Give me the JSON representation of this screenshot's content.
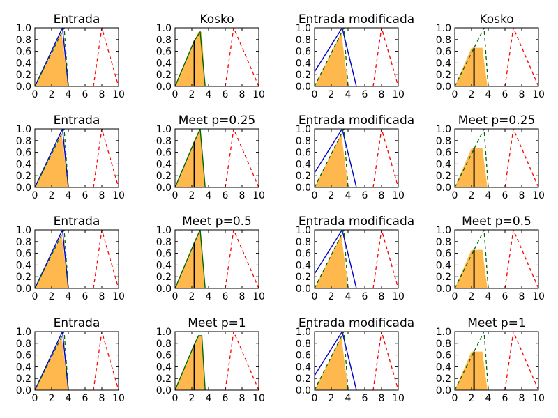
{
  "colors": {
    "fill": "#ffb84d",
    "blue": "#0000cc",
    "green": "#006600",
    "red": "#ff0000",
    "black": "#000000"
  },
  "x_ticks": [
    "0",
    "2",
    "4",
    "6",
    "8",
    "10"
  ],
  "y_ticks": [
    "0.0",
    "0.2",
    "0.4",
    "0.6",
    "0.8",
    "1.0"
  ],
  "chart_data": [
    {
      "type": "line",
      "title": "Entrada",
      "xlim": [
        0,
        10
      ],
      "ylim": [
        0,
        1
      ],
      "series": [
        {
          "color": "blue",
          "style": "solid",
          "x": [
            0,
            3.3,
            4
          ],
          "y": [
            0,
            1,
            0
          ]
        },
        {
          "color": "green",
          "style": "dashed",
          "x": [
            0,
            3.5,
            4
          ],
          "y": [
            0,
            1,
            0
          ]
        },
        {
          "color": "red",
          "style": "dashed",
          "x": [
            7,
            8,
            10
          ],
          "y": [
            0,
            1,
            0
          ]
        }
      ],
      "fill": {
        "x": [
          0,
          3.2,
          4
        ],
        "y": [
          0,
          0.92,
          0
        ]
      }
    },
    {
      "type": "line",
      "title": "Kosko",
      "xlim": [
        0,
        10
      ],
      "ylim": [
        0,
        1
      ],
      "series": [
        {
          "color": "green",
          "style": "solid",
          "x": [
            0,
            2.3,
            3,
            3.6
          ],
          "y": [
            0,
            0.78,
            0.93,
            0
          ]
        },
        {
          "color": "red",
          "style": "dashed",
          "x": [
            6,
            7,
            10
          ],
          "y": [
            0,
            1,
            0
          ]
        }
      ],
      "fill": {
        "x": [
          0,
          2.3,
          2.8,
          3.2,
          3.6
        ],
        "y": [
          0,
          0.78,
          0.93,
          0.93,
          0
        ]
      },
      "marker": {
        "x": 2.3,
        "y": 0.78
      }
    },
    {
      "type": "line",
      "title": "Entrada modificada",
      "xlim": [
        0,
        10
      ],
      "ylim": [
        0,
        1
      ],
      "series": [
        {
          "color": "blue",
          "style": "solid",
          "x": [
            0,
            3.3,
            5
          ],
          "y": [
            0.25,
            1,
            0
          ]
        },
        {
          "color": "green",
          "style": "dashed",
          "x": [
            0,
            3.5,
            4
          ],
          "y": [
            0,
            1,
            0
          ]
        },
        {
          "color": "red",
          "style": "dashed",
          "x": [
            7,
            8,
            10
          ],
          "y": [
            0,
            1,
            0
          ]
        }
      ],
      "fill": {
        "x": [
          0,
          3.2,
          4
        ],
        "y": [
          0,
          0.92,
          0
        ]
      }
    },
    {
      "type": "line",
      "title": "Kosko",
      "xlim": [
        0,
        10
      ],
      "ylim": [
        0,
        1
      ],
      "series": [
        {
          "color": "green",
          "style": "dashed",
          "x": [
            0,
            3.5,
            4
          ],
          "y": [
            0,
            1,
            0
          ]
        },
        {
          "color": "red",
          "style": "dashed",
          "x": [
            6,
            7,
            10
          ],
          "y": [
            0,
            1,
            0
          ]
        }
      ],
      "fill": {
        "x": [
          0,
          2.0,
          3.3,
          3.9
        ],
        "y": [
          0,
          0.66,
          0.66,
          0
        ]
      },
      "marker": {
        "x": 2.3,
        "y": 0.66
      }
    },
    {
      "type": "line",
      "title": "Entrada",
      "xlim": [
        0,
        10
      ],
      "ylim": [
        0,
        1
      ],
      "series": [
        {
          "color": "blue",
          "style": "solid",
          "x": [
            0,
            3.3,
            4
          ],
          "y": [
            0,
            1,
            0
          ]
        },
        {
          "color": "green",
          "style": "dashed",
          "x": [
            0,
            3.5,
            4
          ],
          "y": [
            0,
            1,
            0
          ]
        },
        {
          "color": "red",
          "style": "dashed",
          "x": [
            7,
            8,
            10
          ],
          "y": [
            0,
            1,
            0
          ]
        }
      ],
      "fill": {
        "x": [
          0,
          3.2,
          4
        ],
        "y": [
          0,
          0.92,
          0
        ]
      }
    },
    {
      "type": "line",
      "title": "Meet p=0.25",
      "xlim": [
        0,
        10
      ],
      "ylim": [
        0,
        1
      ],
      "series": [
        {
          "color": "green",
          "style": "solid",
          "x": [
            0,
            2.3,
            3,
            3.6
          ],
          "y": [
            0,
            0.78,
            1,
            0
          ]
        },
        {
          "color": "red",
          "style": "dashed",
          "x": [
            6,
            7,
            10
          ],
          "y": [
            0,
            1,
            0
          ]
        }
      ],
      "fill": {
        "x": [
          0,
          2.3,
          3,
          3.6
        ],
        "y": [
          0,
          0.78,
          1,
          0
        ]
      },
      "marker": {
        "x": 2.3,
        "y": 0.78
      }
    },
    {
      "type": "line",
      "title": "Entrada modificada",
      "xlim": [
        0,
        10
      ],
      "ylim": [
        0,
        1
      ],
      "series": [
        {
          "color": "blue",
          "style": "solid",
          "x": [
            0,
            3.3,
            5
          ],
          "y": [
            0.25,
            1,
            0
          ]
        },
        {
          "color": "green",
          "style": "dashed",
          "x": [
            0,
            3.5,
            4
          ],
          "y": [
            0,
            1,
            0
          ]
        },
        {
          "color": "red",
          "style": "dashed",
          "x": [
            7,
            8,
            10
          ],
          "y": [
            0,
            1,
            0
          ]
        }
      ],
      "fill": {
        "x": [
          0,
          3.2,
          4
        ],
        "y": [
          0,
          0.92,
          0
        ]
      }
    },
    {
      "type": "line",
      "title": "Meet p=0.25",
      "xlim": [
        0,
        10
      ],
      "ylim": [
        0,
        1
      ],
      "series": [
        {
          "color": "green",
          "style": "dashed",
          "x": [
            0,
            3.5,
            4
          ],
          "y": [
            0,
            1,
            0
          ]
        },
        {
          "color": "red",
          "style": "dashed",
          "x": [
            6,
            7,
            10
          ],
          "y": [
            0,
            1,
            0
          ]
        }
      ],
      "fill": {
        "x": [
          0,
          2.0,
          3.3,
          3.9
        ],
        "y": [
          0,
          0.67,
          0.67,
          0
        ]
      },
      "marker": {
        "x": 2.3,
        "y": 0.67
      }
    },
    {
      "type": "line",
      "title": "Entrada",
      "xlim": [
        0,
        10
      ],
      "ylim": [
        0,
        1
      ],
      "series": [
        {
          "color": "blue",
          "style": "solid",
          "x": [
            0,
            3.3,
            4
          ],
          "y": [
            0,
            1,
            0
          ]
        },
        {
          "color": "green",
          "style": "dashed",
          "x": [
            0,
            3.5,
            4
          ],
          "y": [
            0,
            1,
            0
          ]
        },
        {
          "color": "red",
          "style": "dashed",
          "x": [
            7,
            8,
            10
          ],
          "y": [
            0,
            1,
            0
          ]
        }
      ],
      "fill": {
        "x": [
          0,
          3.2,
          4
        ],
        "y": [
          0,
          0.92,
          0
        ]
      }
    },
    {
      "type": "line",
      "title": "Meet p=0.5",
      "xlim": [
        0,
        10
      ],
      "ylim": [
        0,
        1
      ],
      "series": [
        {
          "color": "green",
          "style": "solid",
          "x": [
            0,
            2.3,
            3,
            3.6
          ],
          "y": [
            0,
            0.78,
            1,
            0
          ]
        },
        {
          "color": "red",
          "style": "dashed",
          "x": [
            6,
            7,
            10
          ],
          "y": [
            0,
            1,
            0
          ]
        }
      ],
      "fill": {
        "x": [
          0,
          2.3,
          3,
          3.6
        ],
        "y": [
          0,
          0.78,
          1,
          0
        ]
      },
      "marker": {
        "x": 2.3,
        "y": 0.78
      }
    },
    {
      "type": "line",
      "title": "Entrada modificada",
      "xlim": [
        0,
        10
      ],
      "ylim": [
        0,
        1
      ],
      "series": [
        {
          "color": "blue",
          "style": "solid",
          "x": [
            0,
            3.3,
            5
          ],
          "y": [
            0.25,
            1,
            0
          ]
        },
        {
          "color": "green",
          "style": "dashed",
          "x": [
            0,
            3.5,
            4
          ],
          "y": [
            0,
            1,
            0
          ]
        },
        {
          "color": "red",
          "style": "dashed",
          "x": [
            7,
            8,
            10
          ],
          "y": [
            0,
            1,
            0
          ]
        }
      ],
      "fill": {
        "x": [
          0,
          3.2,
          4
        ],
        "y": [
          0,
          0.92,
          0
        ]
      }
    },
    {
      "type": "line",
      "title": "Meet p=0.5",
      "xlim": [
        0,
        10
      ],
      "ylim": [
        0,
        1
      ],
      "series": [
        {
          "color": "green",
          "style": "dashed",
          "x": [
            0,
            3.5,
            4
          ],
          "y": [
            0,
            1,
            0
          ]
        },
        {
          "color": "red",
          "style": "dashed",
          "x": [
            6,
            7,
            10
          ],
          "y": [
            0,
            1,
            0
          ]
        }
      ],
      "fill": {
        "x": [
          0,
          2.0,
          3.3,
          3.9
        ],
        "y": [
          0,
          0.66,
          0.66,
          0
        ]
      },
      "marker": {
        "x": 2.3,
        "y": 0.66
      }
    },
    {
      "type": "line",
      "title": "Entrada",
      "xlim": [
        0,
        10
      ],
      "ylim": [
        0,
        1
      ],
      "series": [
        {
          "color": "blue",
          "style": "solid",
          "x": [
            0,
            3.3,
            4
          ],
          "y": [
            0,
            1,
            0
          ]
        },
        {
          "color": "green",
          "style": "dashed",
          "x": [
            0,
            3.5,
            4
          ],
          "y": [
            0,
            1,
            0
          ]
        },
        {
          "color": "red",
          "style": "dashed",
          "x": [
            7,
            8,
            10
          ],
          "y": [
            0,
            1,
            0
          ]
        }
      ],
      "fill": {
        "x": [
          0,
          3.2,
          4
        ],
        "y": [
          0,
          0.92,
          0
        ]
      }
    },
    {
      "type": "line",
      "title": "Meet p=1",
      "xlim": [
        0,
        10
      ],
      "ylim": [
        0,
        1
      ],
      "series": [
        {
          "color": "green",
          "style": "solid",
          "x": [
            0,
            2.3,
            2.8,
            3.2,
            3.6
          ],
          "y": [
            0,
            0.78,
            0.93,
            0.93,
            0
          ]
        },
        {
          "color": "red",
          "style": "dashed",
          "x": [
            6,
            7,
            10
          ],
          "y": [
            0,
            1,
            0
          ]
        }
      ],
      "fill": {
        "x": [
          0,
          2.3,
          2.8,
          3.2,
          3.6
        ],
        "y": [
          0,
          0.78,
          0.93,
          0.93,
          0
        ]
      },
      "marker": {
        "x": 2.3,
        "y": 0.78
      }
    },
    {
      "type": "line",
      "title": "Entrada modificada",
      "xlim": [
        0,
        10
      ],
      "ylim": [
        0,
        1
      ],
      "series": [
        {
          "color": "blue",
          "style": "solid",
          "x": [
            0,
            3.3,
            5
          ],
          "y": [
            0.25,
            1,
            0
          ]
        },
        {
          "color": "green",
          "style": "dashed",
          "x": [
            0,
            3.5,
            4
          ],
          "y": [
            0,
            1,
            0
          ]
        },
        {
          "color": "red",
          "style": "dashed",
          "x": [
            7,
            8,
            10
          ],
          "y": [
            0,
            1,
            0
          ]
        }
      ],
      "fill": {
        "x": [
          0,
          3.2,
          4
        ],
        "y": [
          0,
          0.92,
          0
        ]
      }
    },
    {
      "type": "line",
      "title": "Meet p=1",
      "xlim": [
        0,
        10
      ],
      "ylim": [
        0,
        1
      ],
      "series": [
        {
          "color": "green",
          "style": "dashed",
          "x": [
            0,
            3.5,
            4
          ],
          "y": [
            0,
            1,
            0
          ]
        },
        {
          "color": "red",
          "style": "dashed",
          "x": [
            6,
            7,
            10
          ],
          "y": [
            0,
            1,
            0
          ]
        }
      ],
      "fill": {
        "x": [
          0,
          2.0,
          3.3,
          3.9
        ],
        "y": [
          0,
          0.66,
          0.66,
          0
        ]
      },
      "marker": {
        "x": 2.3,
        "y": 0.66
      }
    }
  ]
}
